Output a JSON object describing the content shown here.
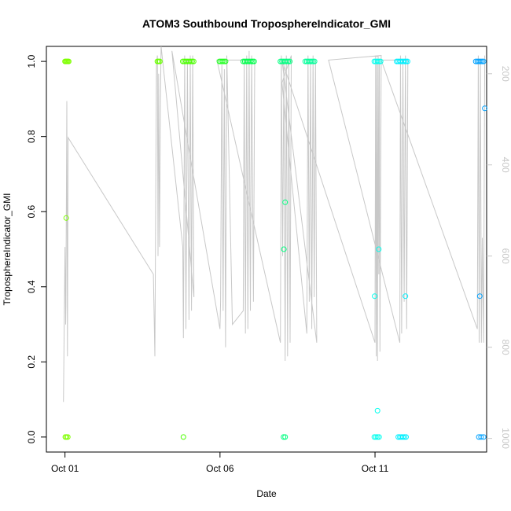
{
  "chart_data": {
    "type": "scatter",
    "title": "ATOM3 Southbound TroposphereIndicator_GMI",
    "xlabel": "Date",
    "ylabel": "TroposphereIndicator_GMI",
    "x_unit": "day",
    "xlim": [
      0.4,
      14.6
    ],
    "ylim": [
      -0.04,
      1.04
    ],
    "x_ticks": [
      {
        "value": 1,
        "label": "Oct 01"
      },
      {
        "value": 6,
        "label": "Oct 06"
      },
      {
        "value": 11,
        "label": "Oct 11"
      }
    ],
    "y_ticks": [
      {
        "value": 0.0,
        "label": "0.0"
      },
      {
        "value": 0.2,
        "label": "0.2"
      },
      {
        "value": 0.4,
        "label": "0.4"
      },
      {
        "value": 0.6,
        "label": "0.6"
      },
      {
        "value": 0.8,
        "label": "0.8"
      },
      {
        "value": 1.0,
        "label": "1.0"
      }
    ],
    "right_axis": {
      "label": "",
      "lim": [
        1030,
        140
      ],
      "ticks": [
        {
          "value": 200,
          "label": "200"
        },
        {
          "value": 400,
          "label": "400"
        },
        {
          "value": 600,
          "label": "600"
        },
        {
          "value": 800,
          "label": "800"
        },
        {
          "value": 1000,
          "label": "1000"
        }
      ],
      "color": "#c8c8c8"
    },
    "grid": false,
    "points": [
      {
        "x": 1.0,
        "y": 1.0,
        "color": "#7fff00"
      },
      {
        "x": 1.03,
        "y": 1.0,
        "color": "#7fff00"
      },
      {
        "x": 1.06,
        "y": 1.0,
        "color": "#7fff00"
      },
      {
        "x": 1.09,
        "y": 1.0,
        "color": "#7fff00"
      },
      {
        "x": 1.12,
        "y": 1.0,
        "color": "#7fff00"
      },
      {
        "x": 1.04,
        "y": 0.583,
        "color": "#7fff00"
      },
      {
        "x": 1.01,
        "y": 0.0,
        "color": "#7fff00"
      },
      {
        "x": 1.05,
        "y": 0.0,
        "color": "#7fff00"
      },
      {
        "x": 1.09,
        "y": 0.0,
        "color": "#7fff00"
      },
      {
        "x": 3.98,
        "y": 1.0,
        "color": "#6aff00"
      },
      {
        "x": 4.02,
        "y": 1.0,
        "color": "#6aff00"
      },
      {
        "x": 4.06,
        "y": 1.0,
        "color": "#6aff00"
      },
      {
        "x": 4.8,
        "y": 1.0,
        "color": "#4cff00"
      },
      {
        "x": 4.85,
        "y": 1.0,
        "color": "#4cff00"
      },
      {
        "x": 4.9,
        "y": 1.0,
        "color": "#4cff00"
      },
      {
        "x": 4.95,
        "y": 1.0,
        "color": "#4cff00"
      },
      {
        "x": 5.0,
        "y": 1.0,
        "color": "#4cff00"
      },
      {
        "x": 5.05,
        "y": 1.0,
        "color": "#4cff00"
      },
      {
        "x": 5.1,
        "y": 1.0,
        "color": "#4cff00"
      },
      {
        "x": 5.15,
        "y": 1.0,
        "color": "#4cff00"
      },
      {
        "x": 4.82,
        "y": 0.0,
        "color": "#4cff00"
      },
      {
        "x": 5.98,
        "y": 1.0,
        "color": "#22ff22"
      },
      {
        "x": 6.03,
        "y": 1.0,
        "color": "#22ff22"
      },
      {
        "x": 6.08,
        "y": 1.0,
        "color": "#22ff22"
      },
      {
        "x": 6.13,
        "y": 1.0,
        "color": "#22ff22"
      },
      {
        "x": 6.18,
        "y": 1.0,
        "color": "#22ff22"
      },
      {
        "x": 6.75,
        "y": 1.0,
        "color": "#00ff4c"
      },
      {
        "x": 6.8,
        "y": 1.0,
        "color": "#00ff4c"
      },
      {
        "x": 6.85,
        "y": 1.0,
        "color": "#00ff4c"
      },
      {
        "x": 6.9,
        "y": 1.0,
        "color": "#00ff4c"
      },
      {
        "x": 6.95,
        "y": 1.0,
        "color": "#00ff4c"
      },
      {
        "x": 7.0,
        "y": 1.0,
        "color": "#00ff4c"
      },
      {
        "x": 7.05,
        "y": 1.0,
        "color": "#00ff4c"
      },
      {
        "x": 7.1,
        "y": 1.0,
        "color": "#00ff4c"
      },
      {
        "x": 7.95,
        "y": 1.0,
        "color": "#00ff80"
      },
      {
        "x": 8.0,
        "y": 1.0,
        "color": "#00ff80"
      },
      {
        "x": 8.05,
        "y": 1.0,
        "color": "#00ff80"
      },
      {
        "x": 8.1,
        "y": 1.0,
        "color": "#00ff80"
      },
      {
        "x": 8.15,
        "y": 1.0,
        "color": "#00ff80"
      },
      {
        "x": 8.2,
        "y": 1.0,
        "color": "#00ff80"
      },
      {
        "x": 8.25,
        "y": 1.0,
        "color": "#00ff80"
      },
      {
        "x": 8.1,
        "y": 0.625,
        "color": "#00ff80"
      },
      {
        "x": 8.06,
        "y": 0.5,
        "color": "#00ff80"
      },
      {
        "x": 8.05,
        "y": 0.0,
        "color": "#00ff80"
      },
      {
        "x": 8.1,
        "y": 0.0,
        "color": "#00ff80"
      },
      {
        "x": 8.75,
        "y": 1.0,
        "color": "#00ff99"
      },
      {
        "x": 8.8,
        "y": 1.0,
        "color": "#00ff99"
      },
      {
        "x": 8.85,
        "y": 1.0,
        "color": "#00ff99"
      },
      {
        "x": 8.9,
        "y": 1.0,
        "color": "#00ff99"
      },
      {
        "x": 8.95,
        "y": 1.0,
        "color": "#00ff99"
      },
      {
        "x": 9.0,
        "y": 1.0,
        "color": "#00ff99"
      },
      {
        "x": 9.05,
        "y": 1.0,
        "color": "#00ff99"
      },
      {
        "x": 10.98,
        "y": 1.0,
        "color": "#00ffee"
      },
      {
        "x": 11.03,
        "y": 1.0,
        "color": "#00ffee"
      },
      {
        "x": 11.08,
        "y": 1.0,
        "color": "#00ffee"
      },
      {
        "x": 11.13,
        "y": 1.0,
        "color": "#00ffee"
      },
      {
        "x": 11.18,
        "y": 1.0,
        "color": "#00ffee"
      },
      {
        "x": 10.99,
        "y": 0.375,
        "color": "#00ffee"
      },
      {
        "x": 11.12,
        "y": 0.5,
        "color": "#00ffee"
      },
      {
        "x": 11.08,
        "y": 0.07,
        "color": "#00ffee"
      },
      {
        "x": 10.98,
        "y": 0.0,
        "color": "#00ffee"
      },
      {
        "x": 11.03,
        "y": 0.0,
        "color": "#00ffee"
      },
      {
        "x": 11.08,
        "y": 0.0,
        "color": "#00ffee"
      },
      {
        "x": 11.13,
        "y": 0.0,
        "color": "#00ffee"
      },
      {
        "x": 11.7,
        "y": 1.0,
        "color": "#00f0ff"
      },
      {
        "x": 11.75,
        "y": 1.0,
        "color": "#00f0ff"
      },
      {
        "x": 11.8,
        "y": 1.0,
        "color": "#00f0ff"
      },
      {
        "x": 11.85,
        "y": 1.0,
        "color": "#00f0ff"
      },
      {
        "x": 11.9,
        "y": 1.0,
        "color": "#00f0ff"
      },
      {
        "x": 11.95,
        "y": 1.0,
        "color": "#00f0ff"
      },
      {
        "x": 12.0,
        "y": 1.0,
        "color": "#00f0ff"
      },
      {
        "x": 12.05,
        "y": 1.0,
        "color": "#00f0ff"
      },
      {
        "x": 11.98,
        "y": 0.375,
        "color": "#00f0ff"
      },
      {
        "x": 11.75,
        "y": 0.0,
        "color": "#00f0ff"
      },
      {
        "x": 11.8,
        "y": 0.0,
        "color": "#00f0ff"
      },
      {
        "x": 11.85,
        "y": 0.0,
        "color": "#00f0ff"
      },
      {
        "x": 11.9,
        "y": 0.0,
        "color": "#00f0ff"
      },
      {
        "x": 11.95,
        "y": 0.0,
        "color": "#00f0ff"
      },
      {
        "x": 12.0,
        "y": 0.0,
        "color": "#00f0ff"
      },
      {
        "x": 14.25,
        "y": 1.0,
        "color": "#00a2ff"
      },
      {
        "x": 14.3,
        "y": 1.0,
        "color": "#00a2ff"
      },
      {
        "x": 14.35,
        "y": 1.0,
        "color": "#00a2ff"
      },
      {
        "x": 14.4,
        "y": 1.0,
        "color": "#00a2ff"
      },
      {
        "x": 14.45,
        "y": 1.0,
        "color": "#00a2ff"
      },
      {
        "x": 14.5,
        "y": 1.0,
        "color": "#00a2ff"
      },
      {
        "x": 14.54,
        "y": 0.875,
        "color": "#00a2ff"
      },
      {
        "x": 14.38,
        "y": 0.375,
        "color": "#00a2ff"
      },
      {
        "x": 14.35,
        "y": 0.0,
        "color": "#00a2ff"
      },
      {
        "x": 14.42,
        "y": 0.0,
        "color": "#00a2ff"
      },
      {
        "x": 14.5,
        "y": 0.0,
        "color": "#00a2ff"
      }
    ],
    "pressure_line": {
      "color": "#c8c8c8",
      "x": [
        0.95,
        1.0,
        1.02,
        1.03,
        1.06,
        1.08,
        1.1,
        3.85,
        3.9,
        3.95,
        3.98,
        4.0,
        4.02,
        4.05,
        4.08,
        4.1,
        4.8,
        4.82,
        4.86,
        4.9,
        4.95,
        5.0,
        5.04,
        5.08,
        5.12,
        5.16,
        4.45,
        6.0,
        6.02,
        6.06,
        6.1,
        6.14,
        6.18,
        6.22,
        6.4,
        6.75,
        6.78,
        6.82,
        6.86,
        6.9,
        6.94,
        6.98,
        7.02,
        7.08,
        7.12,
        5.9,
        7.95,
        7.98,
        8.02,
        8.06,
        8.1,
        8.14,
        8.18,
        8.22,
        8.26,
        8.3,
        8.0,
        8.8,
        8.84,
        8.88,
        8.92,
        8.96,
        9.0,
        9.04,
        9.08,
        9.12,
        8.0,
        11.0,
        11.02,
        11.04,
        11.06,
        11.08,
        11.1,
        11.12,
        11.14,
        11.16,
        11.2,
        9.5,
        11.8,
        11.82,
        11.86,
        11.9,
        11.94,
        11.98,
        12.02,
        12.06,
        11.2,
        14.3,
        14.33,
        14.36,
        14.4,
        14.43,
        14.46,
        14.5,
        14.54
      ],
      "y": [
        920,
        580,
        750,
        710,
        260,
        820,
        340,
        640,
        820,
        180,
        160,
        600,
        200,
        580,
        260,
        140,
        580,
        780,
        160,
        760,
        170,
        740,
        160,
        720,
        160,
        690,
        150,
        760,
        700,
        180,
        720,
        190,
        800,
        160,
        750,
        720,
        170,
        770,
        160,
        760,
        150,
        720,
        160,
        700,
        170,
        170,
        790,
        160,
        600,
        170,
        830,
        160,
        820,
        170,
        790,
        160,
        220,
        770,
        160,
        700,
        170,
        760,
        160,
        690,
        170,
        790,
        170,
        790,
        160,
        820,
        170,
        830,
        160,
        640,
        170,
        810,
        160,
        170,
        790,
        160,
        770,
        170,
        700,
        160,
        760,
        170,
        170,
        760,
        160,
        790,
        170,
        790,
        560,
        790,
        160
      ]
    }
  }
}
